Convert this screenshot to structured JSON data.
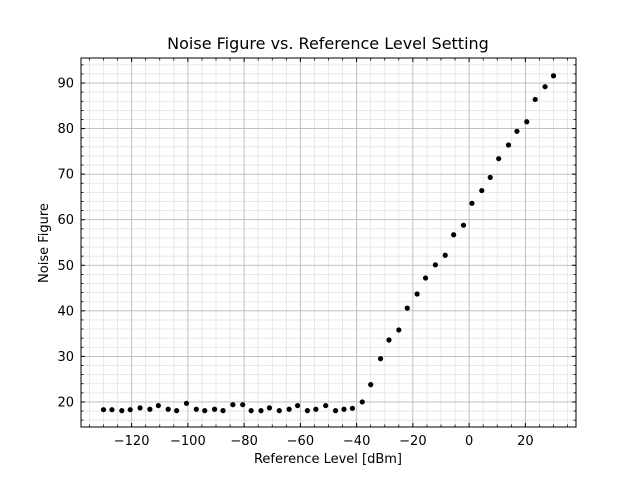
{
  "chart_data": {
    "type": "scatter",
    "title": "Noise Figure vs. Reference Level Setting",
    "xlabel": "Reference Level [dBm]",
    "ylabel": "Noise Figure",
    "xlim": [
      -138,
      38
    ],
    "ylim": [
      14.5,
      95.5
    ],
    "xticks": [
      -120,
      -100,
      -80,
      -60,
      -40,
      -20,
      0,
      20
    ],
    "yticks": [
      20,
      30,
      40,
      50,
      60,
      70,
      80,
      90
    ],
    "grid": true,
    "minor_grid": true,
    "legend": "none",
    "marker_color": "#000000",
    "x": [
      -130,
      -127,
      -123.5,
      -120.5,
      -117,
      -113.5,
      -110.5,
      -107,
      -104,
      -100.5,
      -97,
      -94,
      -90.5,
      -87.5,
      -84,
      -80.5,
      -77.5,
      -74,
      -71,
      -67.5,
      -64,
      -61,
      -57.5,
      -54.5,
      -51,
      -47.5,
      -44.5,
      -41.5,
      -38,
      -35,
      -31.5,
      -28.5,
      -25,
      -22,
      -18.5,
      -15.5,
      -12,
      -8.5,
      -5.5,
      -2,
      1,
      4.5,
      7.5,
      10.5,
      14,
      17,
      20.5,
      23.5,
      27,
      30
    ],
    "y": [
      18.3,
      18.3,
      18.1,
      18.3,
      18.7,
      18.4,
      19.2,
      18.4,
      18.1,
      19.7,
      18.4,
      18.1,
      18.4,
      18.1,
      19.4,
      19.4,
      18.1,
      18.1,
      18.7,
      18.1,
      18.4,
      19.2,
      18.1,
      18.4,
      19.2,
      18.1,
      18.4,
      18.6,
      20.0,
      23.8,
      29.5,
      33.6,
      35.8,
      40.6,
      43.7,
      47.2,
      50.1,
      52.2,
      56.7,
      58.8,
      63.6,
      66.4,
      69.3,
      73.4,
      76.4,
      79.4,
      81.5,
      86.4,
      89.2,
      91.6
    ]
  }
}
